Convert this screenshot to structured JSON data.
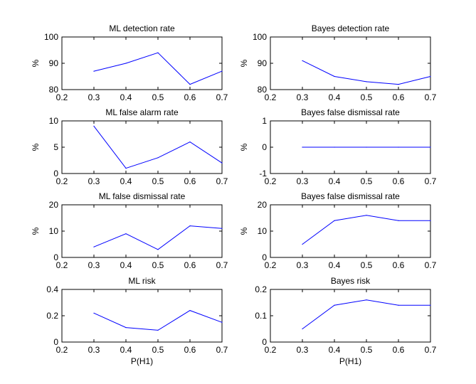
{
  "chart_data": [
    {
      "type": "line",
      "title": "ML detection rate",
      "xlabel": "",
      "ylabel": "%",
      "xlim": [
        0.2,
        0.7
      ],
      "ylim": [
        80,
        100
      ],
      "xticks": [
        "0.2",
        "0.3",
        "0.4",
        "0.5",
        "0.6",
        "0.7"
      ],
      "yticks": [
        "80",
        "90",
        "100"
      ],
      "series": [
        {
          "x": [
            0.3,
            0.4,
            0.5,
            0.6,
            0.7
          ],
          "values": [
            87,
            90,
            94,
            82,
            87
          ]
        }
      ]
    },
    {
      "type": "line",
      "title": "Bayes detection rate",
      "xlabel": "",
      "ylabel": "%",
      "xlim": [
        0.2,
        0.7
      ],
      "ylim": [
        80,
        100
      ],
      "xticks": [
        "0.2",
        "0.3",
        "0.4",
        "0.5",
        "0.6",
        "0.7"
      ],
      "yticks": [
        "80",
        "90",
        "100"
      ],
      "series": [
        {
          "x": [
            0.3,
            0.4,
            0.5,
            0.6,
            0.7
          ],
          "values": [
            91,
            85,
            83,
            82,
            85
          ]
        }
      ]
    },
    {
      "type": "line",
      "title": "ML false alarm rate",
      "xlabel": "",
      "ylabel": "%",
      "xlim": [
        0.2,
        0.7
      ],
      "ylim": [
        0,
        10
      ],
      "xticks": [
        "0.2",
        "0.3",
        "0.4",
        "0.5",
        "0.6",
        "0.7"
      ],
      "yticks": [
        "0",
        "5",
        "10"
      ],
      "series": [
        {
          "x": [
            0.3,
            0.4,
            0.5,
            0.6,
            0.7
          ],
          "values": [
            9,
            1,
            3,
            6,
            2
          ]
        }
      ]
    },
    {
      "type": "line",
      "title": "Bayes false dismissal rate",
      "xlabel": "",
      "ylabel": "%",
      "xlim": [
        0.2,
        0.7
      ],
      "ylim": [
        -1,
        1
      ],
      "xticks": [
        "0.2",
        "0.3",
        "0.4",
        "0.5",
        "0.6",
        "0.7"
      ],
      "yticks": [
        "-1",
        "0",
        "1"
      ],
      "series": [
        {
          "x": [
            0.3,
            0.4,
            0.5,
            0.6,
            0.7
          ],
          "values": [
            0,
            0,
            0,
            0,
            0
          ]
        }
      ]
    },
    {
      "type": "line",
      "title": "ML false dismissal rate",
      "xlabel": "",
      "ylabel": "%",
      "xlim": [
        0.2,
        0.7
      ],
      "ylim": [
        0,
        20
      ],
      "xticks": [
        "0.2",
        "0.3",
        "0.4",
        "0.5",
        "0.6",
        "0.7"
      ],
      "yticks": [
        "0",
        "10",
        "20"
      ],
      "series": [
        {
          "x": [
            0.3,
            0.4,
            0.5,
            0.6,
            0.7
          ],
          "values": [
            4,
            9,
            3,
            12,
            11
          ]
        }
      ]
    },
    {
      "type": "line",
      "title": "Bayes false dismissal rate",
      "xlabel": "",
      "ylabel": "%",
      "xlim": [
        0.2,
        0.7
      ],
      "ylim": [
        0,
        20
      ],
      "xticks": [
        "0.2",
        "0.3",
        "0.4",
        "0.5",
        "0.6",
        "0.7"
      ],
      "yticks": [
        "0",
        "10",
        "20"
      ],
      "series": [
        {
          "x": [
            0.3,
            0.4,
            0.5,
            0.6,
            0.7
          ],
          "values": [
            5,
            14,
            16,
            14,
            14
          ]
        }
      ]
    },
    {
      "type": "line",
      "title": "ML risk",
      "xlabel": "P(H1)",
      "ylabel": "",
      "xlim": [
        0.2,
        0.7
      ],
      "ylim": [
        0,
        0.4
      ],
      "xticks": [
        "0.2",
        "0.3",
        "0.4",
        "0.5",
        "0.6",
        "0.7"
      ],
      "yticks": [
        "0",
        "0.2",
        "0.4"
      ],
      "series": [
        {
          "x": [
            0.3,
            0.4,
            0.5,
            0.6,
            0.7
          ],
          "values": [
            0.22,
            0.11,
            0.09,
            0.24,
            0.15
          ]
        }
      ]
    },
    {
      "type": "line",
      "title": "Bayes risk",
      "xlabel": "P(H1)",
      "ylabel": "",
      "xlim": [
        0.2,
        0.7
      ],
      "ylim": [
        0,
        0.2
      ],
      "xticks": [
        "0.2",
        "0.3",
        "0.4",
        "0.5",
        "0.6",
        "0.7"
      ],
      "yticks": [
        "0",
        "0.1",
        "0.2"
      ],
      "series": [
        {
          "x": [
            0.3,
            0.4,
            0.5,
            0.6,
            0.7
          ],
          "values": [
            0.05,
            0.14,
            0.16,
            0.14,
            0.14
          ]
        }
      ]
    }
  ],
  "style": {
    "line_color": "#0000ff",
    "axes_color": "#000000",
    "background": "#ffffff",
    "grid": false
  }
}
